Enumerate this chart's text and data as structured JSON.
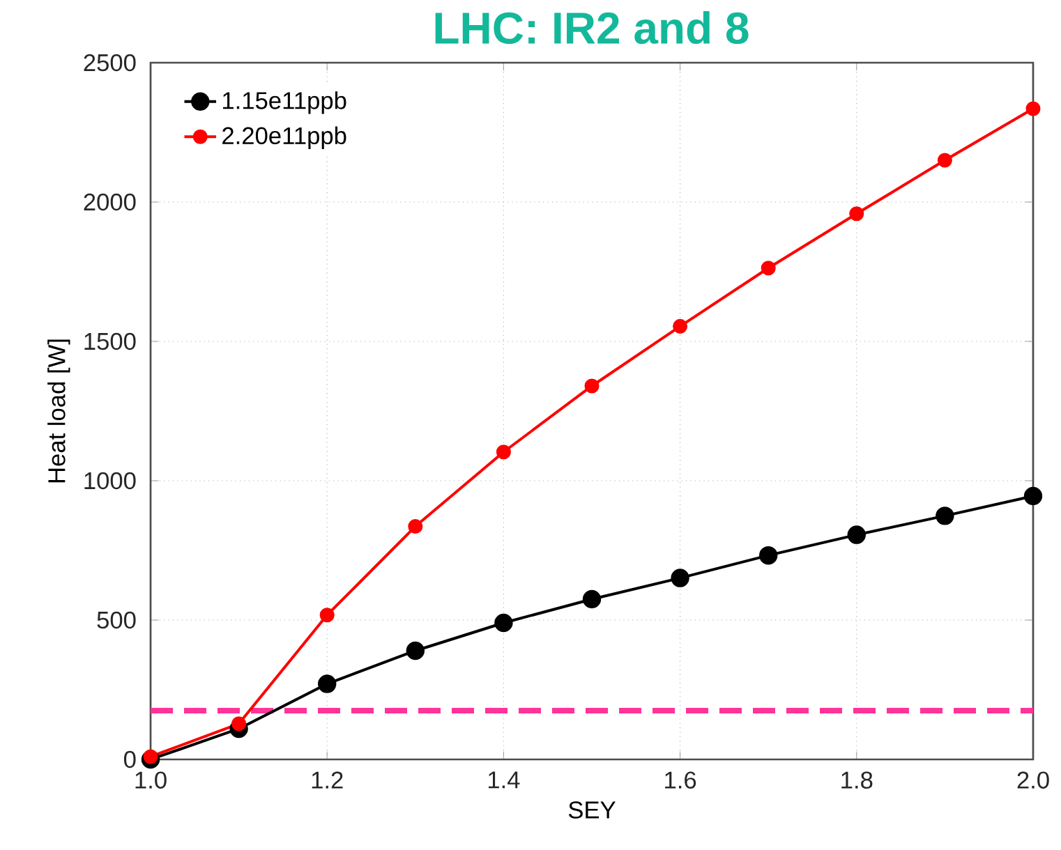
{
  "chart_data": {
    "type": "line",
    "title": "LHC: IR2 and 8",
    "xlabel": "SEY",
    "ylabel": "Heat load [W]",
    "x": [
      1.0,
      1.1,
      1.2,
      1.3,
      1.4,
      1.5,
      1.6,
      1.7,
      1.8,
      1.9,
      2.0
    ],
    "series": [
      {
        "name": "1.15e11ppb",
        "color": "#000000",
        "values": [
          0,
          110,
          271,
          390,
          490,
          575,
          651,
          732,
          806,
          874,
          945
        ]
      },
      {
        "name": "2.20e11ppb",
        "color": "#ff0000",
        "values": [
          10,
          128,
          518,
          836,
          1103,
          1340,
          1554,
          1763,
          1958,
          2150,
          2335
        ]
      }
    ],
    "xlim": [
      1.0,
      2.0
    ],
    "xticks": [
      {
        "value": 1.0,
        "label": "1.0"
      },
      {
        "value": 1.2,
        "label": "1.2"
      },
      {
        "value": 1.4,
        "label": "1.4"
      },
      {
        "value": 1.6,
        "label": "1.6"
      },
      {
        "value": 1.8,
        "label": "1.8"
      },
      {
        "value": 2.0,
        "label": "2.0"
      }
    ],
    "ylim": [
      0,
      2500
    ],
    "yticks": [
      0,
      500,
      1000,
      1500,
      2000,
      2500
    ],
    "ref_lines": [
      {
        "axis": "y",
        "value": 175,
        "color": "#ff3399",
        "line_style": "dashed"
      }
    ],
    "grid": true,
    "legend": "top left",
    "marker": "circle",
    "line_style": "solid"
  }
}
